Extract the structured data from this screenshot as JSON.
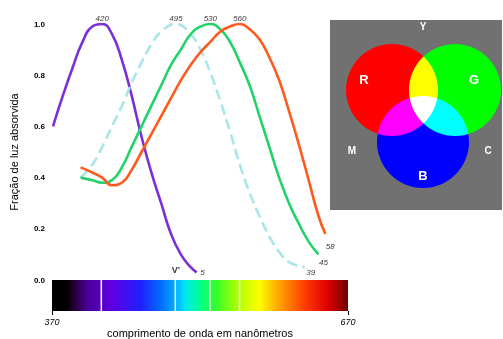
{
  "chart_data": {
    "type": "line",
    "ylabel": "Fração de luz absorvida",
    "xlabel": "comprimento de onda em nanômetros",
    "xlim": [
      370,
      670
    ],
    "xticks": [
      370,
      670
    ],
    "ylim": [
      0,
      1
    ],
    "yticks": [
      {
        "value": 0,
        "label": "0.0"
      },
      0.2,
      0.4,
      0.6,
      0.8,
      {
        "value": 1,
        "label": "1.0"
      }
    ],
    "grid": false,
    "series": [
      {
        "color": "#7b2fd8",
        "line_style": "solid",
        "x": [
          370,
          380,
          390,
          400,
          410,
          420,
          430,
          440,
          450,
          460,
          470,
          480,
          490,
          500,
          510,
          516
        ],
        "values": [
          0.6,
          0.72,
          0.83,
          0.93,
          0.99,
          1.0,
          0.96,
          0.86,
          0.72,
          0.56,
          0.42,
          0.3,
          0.18,
          0.1,
          0.05,
          0.03
        ]
      },
      {
        "color": "#a8e6ea",
        "line_style": "dashed",
        "x": [
          398,
          410,
          420,
          430,
          440,
          450,
          460,
          470,
          480,
          495,
          510,
          520,
          530,
          540,
          550,
          560,
          570,
          580,
          590,
          600,
          610,
          626
        ],
        "values": [
          0.4,
          0.45,
          0.52,
          0.6,
          0.68,
          0.77,
          0.85,
          0.92,
          0.97,
          1.0,
          0.96,
          0.9,
          0.81,
          0.7,
          0.58,
          0.45,
          0.34,
          0.25,
          0.17,
          0.11,
          0.07,
          0.05
        ]
      },
      {
        "color": "#22d36a",
        "line_style": "solid",
        "x": [
          398,
          410,
          420,
          430,
          440,
          450,
          460,
          470,
          480,
          490,
          500,
          510,
          520,
          530,
          540,
          550,
          560,
          570,
          580,
          590,
          600,
          610,
          620,
          630,
          640
        ],
        "values": [
          0.4,
          0.39,
          0.38,
          0.39,
          0.44,
          0.52,
          0.6,
          0.68,
          0.76,
          0.84,
          0.9,
          0.96,
          0.99,
          1.0,
          0.98,
          0.93,
          0.85,
          0.76,
          0.64,
          0.52,
          0.4,
          0.3,
          0.22,
          0.15,
          0.1
        ]
      },
      {
        "color": "#ff5a1f",
        "line_style": "solid",
        "x": [
          398,
          410,
          420,
          430,
          440,
          450,
          460,
          470,
          480,
          490,
          500,
          510,
          520,
          530,
          540,
          550,
          560,
          570,
          580,
          590,
          600,
          610,
          620,
          630,
          640,
          647
        ],
        "values": [
          0.44,
          0.42,
          0.4,
          0.37,
          0.38,
          0.43,
          0.5,
          0.57,
          0.64,
          0.71,
          0.78,
          0.84,
          0.89,
          0.93,
          0.97,
          0.99,
          1.0,
          0.98,
          0.94,
          0.87,
          0.78,
          0.66,
          0.53,
          0.39,
          0.25,
          0.18
        ]
      }
    ],
    "annotations": [
      {
        "text": "420",
        "x": 420,
        "y": 1
      },
      {
        "text": "495",
        "x": 495,
        "y": 1
      },
      {
        "text": "530",
        "x": 530,
        "y": 1
      },
      {
        "text": "560",
        "x": 560,
        "y": 1
      },
      {
        "text": "5",
        "x": 522,
        "y": 0.03
      },
      {
        "text": "39",
        "x": 632,
        "y": 0.03
      },
      {
        "text": "45",
        "x": 645,
        "y": 0.07
      },
      {
        "text": "58",
        "x": 652,
        "y": 0.13
      },
      {
        "text": "V'",
        "x": 495,
        "y": 0.04
      }
    ]
  },
  "inset": {
    "circles": [
      {
        "label": "R",
        "color": "#ff0000"
      },
      {
        "label": "G",
        "color": "#00ff00"
      },
      {
        "label": "B",
        "color": "#0000ff"
      }
    ],
    "mixes": [
      "Y",
      "M",
      "C"
    ]
  }
}
